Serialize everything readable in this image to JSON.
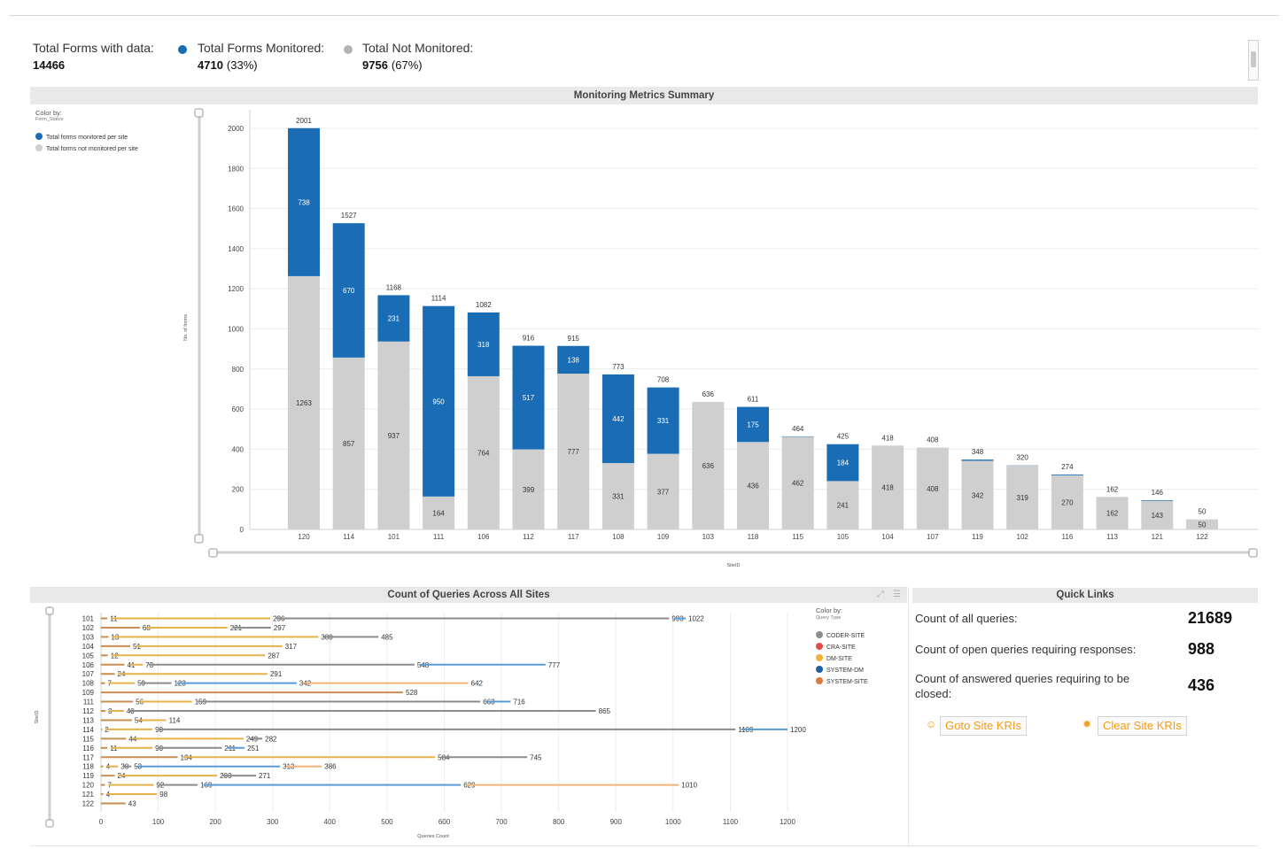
{
  "summary": {
    "total_forms_label": "Total Forms with data:",
    "total_forms_value": "14466",
    "monitored_label": "Total Forms Monitored:",
    "monitored_value": "4710",
    "monitored_pct": "(33%)",
    "not_monitored_label": "Total Not Monitored:",
    "not_monitored_value": "9756",
    "not_monitored_pct": "(67%)",
    "colors": {
      "monitored": "#1a6db5",
      "not_monitored": "#b3b3b3"
    }
  },
  "metrics_panel": {
    "title": "Monitoring Metrics Summary",
    "legend_title": "Color by:",
    "legend_sub": "Form_Status",
    "legend_items": [
      {
        "label": "Total forms monitored per site",
        "color": "#1a6db5"
      },
      {
        "label": "Total forms not monitored per site",
        "color": "#cfcfcf"
      }
    ]
  },
  "queries_panel": {
    "title": "Count of Queries Across All Sites",
    "legend_title": "Color by:",
    "legend_sub": "Query Type",
    "legend_items": [
      {
        "label": "CODER-SITE",
        "color": "#8c8c8c"
      },
      {
        "label": "CRA-SITE",
        "color": "#e34a4a"
      },
      {
        "label": "DM-SITE",
        "color": "#f2b134"
      },
      {
        "label": "SYSTEM-DM",
        "color": "#1f5fa3"
      },
      {
        "label": "SYSTEM-SITE",
        "color": "#e07a3a"
      }
    ]
  },
  "quick_links": {
    "title": "Quick Links",
    "all_queries_label": "Count of all queries:",
    "all_queries_value": "21689",
    "open_queries_label": "Count of open queries requiring responses:",
    "open_queries_value": "988",
    "answered_label_line1": "Count of answered queries requiring to be",
    "answered_label_line2": "closed:",
    "answered_value": "436",
    "goto_button": "Goto Site KRIs",
    "clear_button": "Clear Site KRIs"
  },
  "chart_data": [
    {
      "type": "bar",
      "stacked": true,
      "title": "Monitoring Metrics Summary",
      "xlabel": "SiteID",
      "ylabel": "No. of forms",
      "ylim": [
        0,
        2000
      ],
      "yticks": [
        0,
        200,
        400,
        600,
        800,
        1000,
        1200,
        1400,
        1600,
        1800,
        2000
      ],
      "categories": [
        "120",
        "114",
        "101",
        "111",
        "106",
        "112",
        "117",
        "108",
        "109",
        "103",
        "118",
        "115",
        "105",
        "104",
        "107",
        "119",
        "102",
        "116",
        "113",
        "121",
        "122"
      ],
      "series": [
        {
          "name": "Total forms not monitored per site",
          "color": "#cfcfcf",
          "values": [
            1263,
            857,
            937,
            164,
            764,
            399,
            777,
            331,
            377,
            636,
            436,
            462,
            241,
            418,
            408,
            342,
            319,
            270,
            162,
            143,
            50
          ]
        },
        {
          "name": "Total forms monitored per site",
          "color": "#1a6db5",
          "values": [
            738,
            670,
            231,
            950,
            318,
            517,
            138,
            442,
            331,
            0,
            175,
            2,
            184,
            0,
            0,
            6,
            1,
            4,
            0,
            3,
            0
          ]
        }
      ],
      "totals": [
        2001,
        1527,
        1168,
        1114,
        1082,
        916,
        915,
        773,
        708,
        636,
        611,
        464,
        425,
        418,
        408,
        348,
        320,
        274,
        162,
        146,
        50
      ]
    },
    {
      "type": "bar",
      "orientation": "horizontal",
      "title": "Count of Queries Across All Sites",
      "xlabel": "Queries Count",
      "ylabel": "SiteID",
      "xlim": [
        0,
        1200
      ],
      "xticks": [
        0,
        100,
        200,
        300,
        400,
        500,
        600,
        700,
        800,
        900,
        1000,
        1100,
        1200
      ],
      "categories": [
        "101",
        "102",
        "103",
        "104",
        "105",
        "106",
        "107",
        "108",
        "109",
        "111",
        "112",
        "113",
        "114",
        "115",
        "116",
        "117",
        "118",
        "119",
        "120",
        "121",
        "122"
      ],
      "rows": [
        {
          "site": "101",
          "values": [
            11,
            296,
            993,
            1022
          ]
        },
        {
          "site": "102",
          "values": [
            68,
            221,
            297
          ]
        },
        {
          "site": "103",
          "values": [
            13,
            380,
            485
          ]
        },
        {
          "site": "104",
          "values": [
            51,
            317
          ]
        },
        {
          "site": "105",
          "values": [
            12,
            287
          ]
        },
        {
          "site": "106",
          "values": [
            41,
            73,
            548,
            777
          ]
        },
        {
          "site": "107",
          "values": [
            24,
            291
          ]
        },
        {
          "site": "108",
          "values": [
            7,
            59,
            123,
            342,
            642
          ]
        },
        {
          "site": "109",
          "values": [
            528
          ]
        },
        {
          "site": "111",
          "values": [
            56,
            159,
            663,
            716
          ]
        },
        {
          "site": "112",
          "values": [
            8,
            40,
            865
          ]
        },
        {
          "site": "113",
          "values": [
            54,
            114
          ]
        },
        {
          "site": "114",
          "values": [
            2,
            90,
            1109,
            1200
          ]
        },
        {
          "site": "115",
          "values": [
            44,
            249,
            282
          ]
        },
        {
          "site": "116",
          "values": [
            11,
            90,
            211,
            251
          ]
        },
        {
          "site": "117",
          "values": [
            134,
            584,
            745
          ]
        },
        {
          "site": "118",
          "values": [
            4,
            30,
            53,
            313,
            386
          ]
        },
        {
          "site": "119",
          "values": [
            24,
            203,
            271
          ]
        },
        {
          "site": "120",
          "values": [
            7,
            92,
            169,
            629,
            1010
          ]
        },
        {
          "site": "121",
          "values": [
            4,
            98
          ]
        },
        {
          "site": "122",
          "values": [
            43
          ]
        }
      ]
    }
  ]
}
